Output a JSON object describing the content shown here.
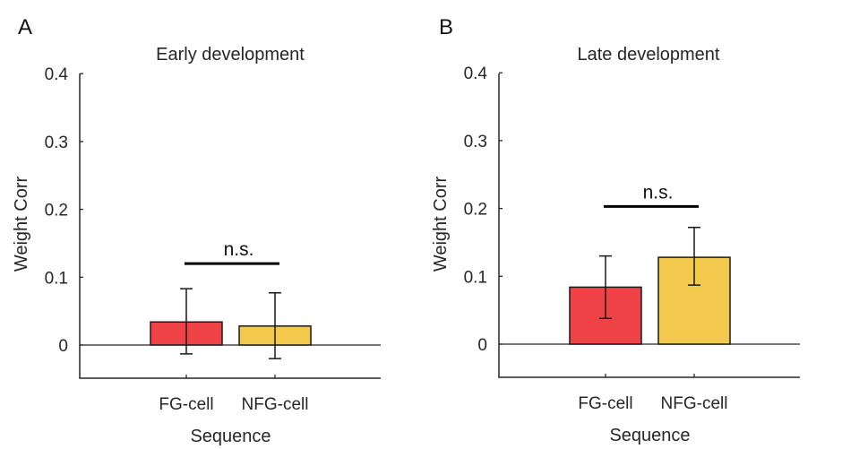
{
  "chart_data": [
    {
      "panel": "A",
      "type": "bar",
      "title": "Early development",
      "xlabel": "Sequence",
      "ylabel": "Weight Corr",
      "categories": [
        "FG-cell",
        "NFG-cell"
      ],
      "values": [
        0.034,
        0.028
      ],
      "error_upper": [
        0.083,
        0.077
      ],
      "error_lower": [
        -0.013,
        -0.02
      ],
      "colors": [
        "#F04347",
        "#F2C94C"
      ],
      "ylim": [
        -0.05,
        0.4
      ],
      "yticks": [
        0,
        0.1,
        0.2,
        0.3,
        0.4
      ],
      "ytick_labels": [
        "0",
        "0.1",
        "0.2",
        "0.3",
        "0.4"
      ],
      "grid": false,
      "significance": {
        "label": "n.s.",
        "between": [
          "FG-cell",
          "NFG-cell"
        ],
        "y": 0.12
      }
    },
    {
      "panel": "B",
      "type": "bar",
      "title": "Late development",
      "xlabel": "Sequence",
      "ylabel": "Weight Corr",
      "categories": [
        "FG-cell",
        "NFG-cell"
      ],
      "values": [
        0.084,
        0.128
      ],
      "error_upper": [
        0.13,
        0.172
      ],
      "error_lower": [
        0.038,
        0.087
      ],
      "colors": [
        "#F04347",
        "#F2C94C"
      ],
      "ylim": [
        -0.05,
        0.4
      ],
      "yticks": [
        0,
        0.1,
        0.2,
        0.3,
        0.4
      ],
      "ytick_labels": [
        "0",
        "0.1",
        "0.2",
        "0.3",
        "0.4"
      ],
      "grid": false,
      "significance": {
        "label": "n.s.",
        "between": [
          "FG-cell",
          "NFG-cell"
        ],
        "y": 0.203
      }
    }
  ]
}
